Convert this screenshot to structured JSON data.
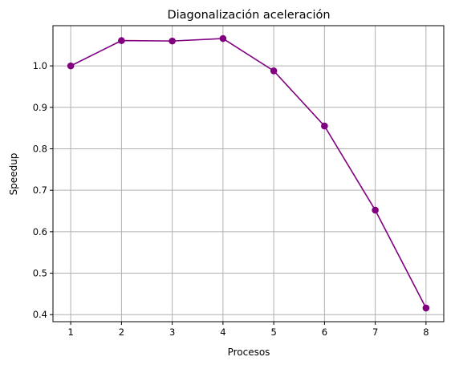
{
  "chart_data": {
    "type": "line",
    "title": "Diagonalización aceleración",
    "xlabel": "Procesos",
    "ylabel": "Speedup",
    "x": [
      1,
      2,
      3,
      4,
      5,
      6,
      7,
      8
    ],
    "x_ticks": [
      "1",
      "2",
      "3",
      "4",
      "5",
      "6",
      "7",
      "8"
    ],
    "y_ticks": [
      "0.4",
      "0.5",
      "0.6",
      "0.7",
      "0.8",
      "0.9",
      "1.0"
    ],
    "y_tick_values": [
      0.4,
      0.5,
      0.6,
      0.7,
      0.8,
      0.9,
      1.0
    ],
    "xlim": [
      0.65,
      8.35
    ],
    "ylim": [
      0.383,
      1.097
    ],
    "grid": true,
    "series": [
      {
        "values": [
          1.0,
          1.061,
          1.06,
          1.066,
          0.988,
          0.855,
          0.652,
          0.416
        ],
        "color": "#800080",
        "marker": "circle"
      }
    ]
  }
}
